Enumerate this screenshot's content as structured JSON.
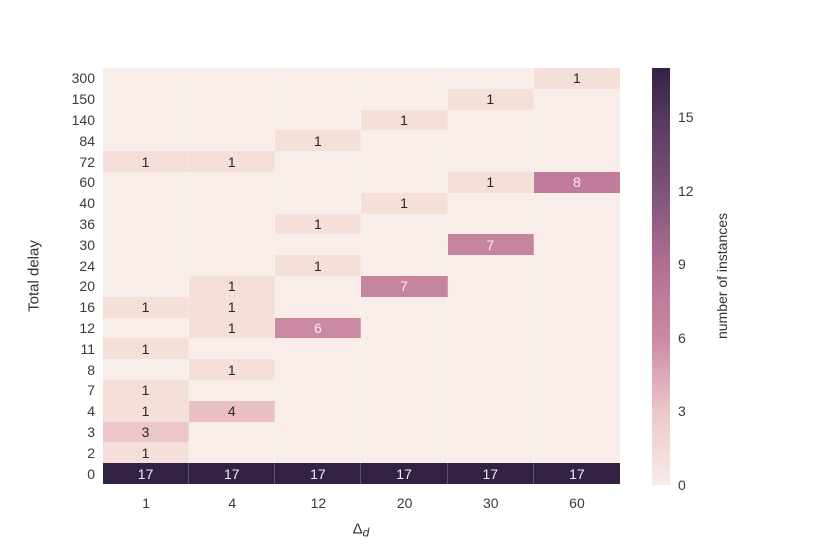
{
  "chart_data": {
    "type": "heatmap",
    "title": "",
    "xlabel_main": "Δ",
    "xlabel_sub": "d",
    "ylabel": "Total delay",
    "x_categories": [
      "1",
      "4",
      "12",
      "20",
      "30",
      "60"
    ],
    "y_categories": [
      "300",
      "150",
      "140",
      "84",
      "72",
      "60",
      "40",
      "36",
      "30",
      "24",
      "20",
      "16",
      "12",
      "11",
      "8",
      "7",
      "4",
      "3",
      "2",
      "0"
    ],
    "values": [
      [
        0,
        0,
        0,
        0,
        0,
        1
      ],
      [
        0,
        0,
        0,
        0,
        1,
        0
      ],
      [
        0,
        0,
        0,
        1,
        0,
        0
      ],
      [
        0,
        0,
        1,
        0,
        0,
        0
      ],
      [
        1,
        1,
        0,
        0,
        0,
        0
      ],
      [
        0,
        0,
        0,
        0,
        1,
        8
      ],
      [
        0,
        0,
        0,
        1,
        0,
        0
      ],
      [
        0,
        0,
        1,
        0,
        0,
        0
      ],
      [
        0,
        0,
        0,
        0,
        7,
        0
      ],
      [
        0,
        0,
        1,
        0,
        0,
        0
      ],
      [
        0,
        1,
        0,
        7,
        0,
        0
      ],
      [
        1,
        1,
        0,
        0,
        0,
        0
      ],
      [
        0,
        1,
        6,
        0,
        0,
        0
      ],
      [
        1,
        0,
        0,
        0,
        0,
        0
      ],
      [
        0,
        1,
        0,
        0,
        0,
        0
      ],
      [
        1,
        0,
        0,
        0,
        0,
        0
      ],
      [
        1,
        4,
        0,
        0,
        0,
        0
      ],
      [
        3,
        0,
        0,
        0,
        0,
        0
      ],
      [
        1,
        0,
        0,
        0,
        0,
        0
      ],
      [
        17,
        17,
        17,
        17,
        17,
        17
      ]
    ],
    "annotations_shown_for": "non-zero values only",
    "grid_on": false,
    "cell_colors": {
      "0": "#f8ede9",
      "1": "#f4dfd9",
      "3": "#edc6ca",
      "4": "#eabfc6",
      "6": "#ca8aa4",
      "7": "#c7849f",
      "8": "#c17c9c",
      "17": "#332144"
    },
    "text_color_light": "#f2edf3",
    "text_color_dark": "#262626",
    "light_text_min": 5,
    "colorbar": {
      "label": "number of instances",
      "ticks": [
        0,
        3,
        6,
        9,
        12,
        15
      ],
      "vmin": 0,
      "vmax": 17,
      "gradient_stops": [
        {
          "v": 0,
          "c": "#f8ede9"
        },
        {
          "v": 3,
          "c": "#edc6ca"
        },
        {
          "v": 6,
          "c": "#ca8aa4"
        },
        {
          "v": 9,
          "c": "#b06f92"
        },
        {
          "v": 12,
          "c": "#7e5278"
        },
        {
          "v": 15,
          "c": "#533a5c"
        },
        {
          "v": 17,
          "c": "#332144"
        }
      ],
      "legend_position": "right"
    }
  }
}
